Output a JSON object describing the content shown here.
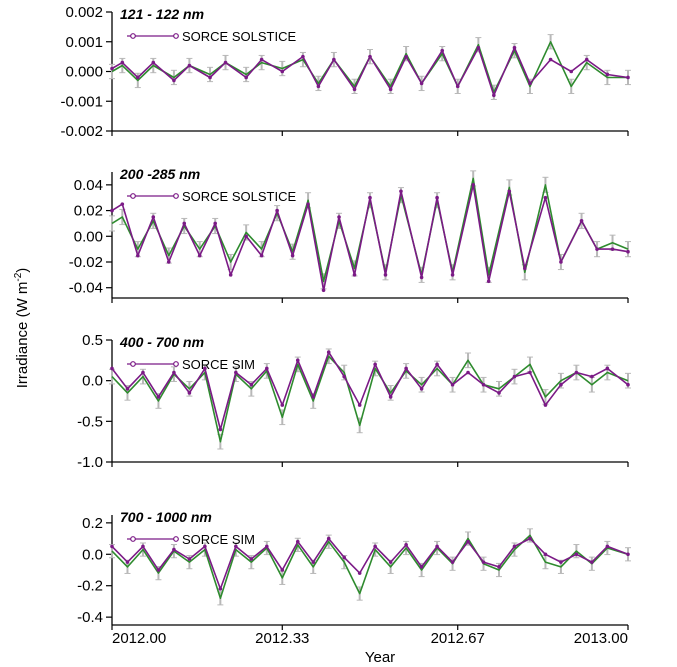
{
  "figure": {
    "xlabel": "Year",
    "ylabel_main": "Irradiance (W m",
    "ylabel_sup": "-2",
    "ylabel_close": ")",
    "x_ticks": [
      "2012.00",
      "2012.33",
      "2012.67",
      "2013.00"
    ]
  },
  "colors": {
    "instrument": "#7b1a86",
    "model": "#2e8b2e",
    "uncertainty": "#b8b8b8"
  },
  "chart_data": [
    {
      "type": "line",
      "title": "121 - 122 nm",
      "legend": "SORCE SOLSTICE",
      "legend_position": "top-left",
      "xlim": [
        2012.0,
        2013.0
      ],
      "ylim": [
        -0.002,
        0.002
      ],
      "y_ticks": [
        "0.002",
        "0.001",
        "0.000",
        "-0.001",
        "-0.002"
      ],
      "series": [
        {
          "name": "SORCE SOLSTICE",
          "x": [
            2012.0,
            2012.02,
            2012.05,
            2012.08,
            2012.12,
            2012.15,
            2012.19,
            2012.22,
            2012.26,
            2012.29,
            2012.33,
            2012.37,
            2012.4,
            2012.43,
            2012.47,
            2012.5,
            2012.54,
            2012.57,
            2012.6,
            2012.64,
            2012.67,
            2012.71,
            2012.74,
            2012.78,
            2012.81,
            2012.85,
            2012.89,
            2012.92,
            2012.96,
            2013.0
          ],
          "y": [
            0.0001,
            0.0003,
            -0.0002,
            0.0003,
            -0.0003,
            0.0002,
            -0.0002,
            0.0003,
            -0.0002,
            0.0004,
            0.0,
            0.0005,
            -0.0005,
            0.0004,
            -0.0006,
            0.0005,
            -0.0006,
            0.0005,
            -0.0004,
            0.0007,
            -0.0005,
            0.0008,
            -0.0008,
            0.0008,
            -0.0004,
            0.0004,
            0.0,
            0.0004,
            -0.0001,
            -0.0002
          ]
        },
        {
          "name": "",
          "x": [
            2012.0,
            2012.02,
            2012.05,
            2012.08,
            2012.12,
            2012.15,
            2012.19,
            2012.22,
            2012.26,
            2012.29,
            2012.33,
            2012.37,
            2012.4,
            2012.43,
            2012.47,
            2012.5,
            2012.54,
            2012.57,
            2012.6,
            2012.64,
            2012.67,
            2012.71,
            2012.74,
            2012.78,
            2012.81,
            2012.85,
            2012.89,
            2012.92,
            2012.96,
            2013.0
          ],
          "y": [
            0.0,
            0.0002,
            -0.0003,
            0.0002,
            -0.0002,
            0.0002,
            -0.0001,
            0.0003,
            -0.0001,
            0.0003,
            0.0001,
            0.0004,
            -0.0004,
            0.0004,
            -0.0005,
            0.0005,
            -0.0005,
            0.0006,
            -0.0004,
            0.0006,
            -0.0005,
            0.0009,
            -0.0007,
            0.0007,
            -0.0005,
            0.001,
            -0.0005,
            0.0003,
            -0.0002,
            -0.0002
          ]
        }
      ]
    },
    {
      "type": "line",
      "title": "200 -285 nm",
      "legend": "SORCE SOLSTICE",
      "legend_position": "top-left",
      "xlim": [
        2012.0,
        2013.0
      ],
      "ylim": [
        -0.048,
        0.05
      ],
      "y_ticks": [
        "0.04",
        "0.02",
        "0.00",
        "-0.02",
        "-0.04"
      ],
      "series": [
        {
          "name": "SORCE SOLSTICE",
          "x": [
            2012.0,
            2012.02,
            2012.05,
            2012.08,
            2012.11,
            2012.14,
            2012.17,
            2012.2,
            2012.23,
            2012.26,
            2012.29,
            2012.32,
            2012.35,
            2012.38,
            2012.41,
            2012.44,
            2012.47,
            2012.5,
            2012.53,
            2012.56,
            2012.6,
            2012.63,
            2012.66,
            2012.7,
            2012.73,
            2012.77,
            2012.8,
            2012.84,
            2012.87,
            2012.91,
            2012.94,
            2012.97,
            2013.0
          ],
          "y": [
            0.02,
            0.025,
            -0.015,
            0.015,
            -0.02,
            0.01,
            -0.015,
            0.01,
            -0.03,
            0.0,
            -0.015,
            0.02,
            -0.015,
            0.025,
            -0.042,
            0.015,
            -0.03,
            0.03,
            -0.03,
            0.035,
            -0.032,
            0.03,
            -0.03,
            0.04,
            -0.035,
            0.035,
            -0.025,
            0.03,
            -0.02,
            0.012,
            -0.01,
            -0.01,
            -0.012
          ]
        },
        {
          "name": "",
          "x": [
            2012.0,
            2012.02,
            2012.05,
            2012.08,
            2012.11,
            2012.14,
            2012.17,
            2012.2,
            2012.23,
            2012.26,
            2012.29,
            2012.32,
            2012.35,
            2012.38,
            2012.41,
            2012.44,
            2012.47,
            2012.5,
            2012.53,
            2012.56,
            2012.6,
            2012.63,
            2012.66,
            2012.7,
            2012.73,
            2012.77,
            2012.8,
            2012.84,
            2012.87,
            2012.91,
            2012.94,
            2012.97,
            2013.0
          ],
          "y": [
            0.01,
            0.015,
            -0.01,
            0.012,
            -0.015,
            0.008,
            -0.01,
            0.008,
            -0.02,
            0.003,
            -0.01,
            0.018,
            -0.012,
            0.028,
            -0.035,
            0.012,
            -0.025,
            0.028,
            -0.028,
            0.032,
            -0.03,
            0.028,
            -0.028,
            0.045,
            -0.03,
            0.038,
            -0.028,
            0.04,
            -0.02,
            0.012,
            -0.01,
            -0.005,
            -0.01
          ]
        }
      ]
    },
    {
      "type": "line",
      "title": "400 - 700 nm",
      "legend": "SORCE SIM",
      "legend_position": "top-left",
      "xlim": [
        2012.0,
        2013.0
      ],
      "ylim": [
        -1.0,
        0.5
      ],
      "y_ticks": [
        "0.5",
        "0.0",
        "-0.5",
        "-1.0"
      ],
      "series": [
        {
          "name": "SORCE SIM",
          "x": [
            2012.0,
            2012.03,
            2012.06,
            2012.09,
            2012.12,
            2012.15,
            2012.18,
            2012.21,
            2012.24,
            2012.27,
            2012.3,
            2012.33,
            2012.36,
            2012.39,
            2012.42,
            2012.45,
            2012.48,
            2012.51,
            2012.54,
            2012.57,
            2012.6,
            2012.63,
            2012.66,
            2012.69,
            2012.72,
            2012.75,
            2012.78,
            2012.81,
            2012.84,
            2012.87,
            2012.9,
            2012.93,
            2012.96,
            2013.0
          ],
          "y": [
            0.15,
            -0.1,
            0.1,
            -0.2,
            0.1,
            -0.15,
            0.15,
            -0.6,
            0.1,
            -0.05,
            0.15,
            -0.3,
            0.25,
            -0.2,
            0.35,
            0.05,
            -0.3,
            0.2,
            -0.2,
            0.15,
            -0.1,
            0.2,
            -0.05,
            0.1,
            -0.05,
            -0.15,
            0.05,
            0.1,
            -0.3,
            -0.05,
            0.1,
            0.05,
            0.15,
            -0.05
          ]
        },
        {
          "name": "",
          "x": [
            2012.0,
            2012.03,
            2012.06,
            2012.09,
            2012.12,
            2012.15,
            2012.18,
            2012.21,
            2012.24,
            2012.27,
            2012.3,
            2012.33,
            2012.36,
            2012.39,
            2012.42,
            2012.45,
            2012.48,
            2012.51,
            2012.54,
            2012.57,
            2012.6,
            2012.63,
            2012.66,
            2012.69,
            2012.72,
            2012.75,
            2012.78,
            2012.81,
            2012.84,
            2012.87,
            2012.9,
            2012.93,
            2012.96,
            2013.0
          ],
          "y": [
            0.05,
            -0.15,
            0.05,
            -0.25,
            0.08,
            -0.1,
            0.1,
            -0.75,
            0.08,
            -0.1,
            0.12,
            -0.45,
            0.2,
            -0.25,
            0.3,
            0.1,
            -0.55,
            0.15,
            -0.15,
            0.12,
            -0.05,
            0.15,
            -0.05,
            0.25,
            -0.05,
            -0.1,
            0.05,
            0.2,
            -0.2,
            0.0,
            0.1,
            -0.05,
            0.1,
            0.0
          ]
        }
      ]
    },
    {
      "type": "line",
      "title": "700 - 1000 nm",
      "legend": "SORCE SIM",
      "legend_position": "top-left",
      "xlim": [
        2012.0,
        2013.0
      ],
      "ylim": [
        -0.45,
        0.25
      ],
      "y_ticks": [
        "0.2",
        "0.0",
        "-0.2",
        "-0.4"
      ],
      "series": [
        {
          "name": "SORCE SIM",
          "x": [
            2012.0,
            2012.03,
            2012.06,
            2012.09,
            2012.12,
            2012.15,
            2012.18,
            2012.21,
            2012.24,
            2012.27,
            2012.3,
            2012.33,
            2012.36,
            2012.39,
            2012.42,
            2012.45,
            2012.48,
            2012.51,
            2012.54,
            2012.57,
            2012.6,
            2012.63,
            2012.66,
            2012.69,
            2012.72,
            2012.75,
            2012.78,
            2012.81,
            2012.84,
            2012.87,
            2012.9,
            2012.93,
            2012.96,
            2013.0
          ],
          "y": [
            0.05,
            -0.05,
            0.05,
            -0.1,
            0.03,
            -0.03,
            0.05,
            -0.22,
            0.05,
            -0.03,
            0.05,
            -0.1,
            0.08,
            -0.05,
            0.1,
            -0.02,
            -0.12,
            0.05,
            -0.05,
            0.06,
            -0.08,
            0.05,
            -0.05,
            0.08,
            -0.05,
            -0.08,
            0.05,
            0.1,
            0.0,
            -0.05,
            0.0,
            -0.05,
            0.05,
            0.0
          ]
        },
        {
          "name": "",
          "x": [
            2012.0,
            2012.03,
            2012.06,
            2012.09,
            2012.12,
            2012.15,
            2012.18,
            2012.21,
            2012.24,
            2012.27,
            2012.3,
            2012.33,
            2012.36,
            2012.39,
            2012.42,
            2012.45,
            2012.48,
            2012.51,
            2012.54,
            2012.57,
            2012.6,
            2012.63,
            2012.66,
            2012.69,
            2012.72,
            2012.75,
            2012.78,
            2012.81,
            2012.84,
            2012.87,
            2012.9,
            2012.93,
            2012.96,
            2013.0
          ],
          "y": [
            0.02,
            -0.08,
            0.03,
            -0.12,
            0.02,
            -0.05,
            0.03,
            -0.28,
            0.03,
            -0.05,
            0.04,
            -0.15,
            0.06,
            -0.08,
            0.08,
            -0.05,
            -0.25,
            0.03,
            -0.08,
            0.04,
            -0.1,
            0.04,
            -0.06,
            0.1,
            -0.06,
            -0.1,
            0.03,
            0.12,
            -0.05,
            -0.08,
            0.02,
            -0.06,
            0.04,
            0.0
          ]
        }
      ]
    }
  ]
}
